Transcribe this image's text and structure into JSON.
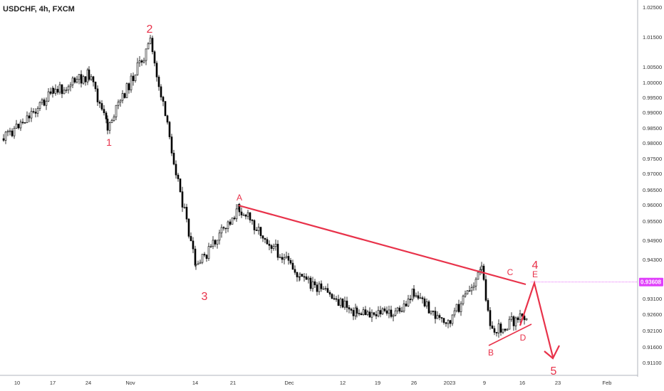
{
  "header": {
    "title": "USDCHF, 4h, FXCM"
  },
  "chart_data": {
    "type": "candlestick",
    "symbol": "USDCHF",
    "timeframe": "4h",
    "source": "FXCM",
    "ylim": [
      0.907,
      1.028
    ],
    "y_ticks": [
      "1.02500",
      "1.01500",
      "1.00500",
      "1.00000",
      "0.99500",
      "0.99000",
      "0.98500",
      "0.98000",
      "0.97500",
      "0.97000",
      "0.96500",
      "0.96000",
      "0.95500",
      "0.94900",
      "0.94300",
      "0.93100",
      "0.92600",
      "0.92100",
      "0.91600",
      "0.91100"
    ],
    "x_ticks": [
      "10",
      "17",
      "24",
      "Nov",
      "14",
      "21",
      "Dec",
      "12",
      "19",
      "26",
      "2023",
      "9",
      "16",
      "23",
      "Feb"
    ],
    "current_price": {
      "label": "0.93608",
      "value": 0.93608,
      "color": "#e040fb"
    },
    "price_path": [
      {
        "x": "10",
        "y": 0.98
      },
      {
        "x": "17",
        "y": 0.997
      },
      {
        "x": "24",
        "y": 1.003
      },
      {
        "x": "Nov",
        "y": 0.988
      },
      {
        "x": "Nov",
        "y": 1.008
      },
      {
        "x": "14",
        "y": 0.942
      },
      {
        "x": "21",
        "y": 0.957
      },
      {
        "x": "Dec",
        "y": 0.938
      },
      {
        "x": "12",
        "y": 0.926
      },
      {
        "x": "19",
        "y": 0.928
      },
      {
        "x": "26",
        "y": 0.929
      },
      {
        "x": "2023",
        "y": 0.922
      },
      {
        "x": "9",
        "y": 0.936
      },
      {
        "x": "9",
        "y": 0.92
      },
      {
        "x": "16",
        "y": 0.929
      }
    ],
    "wave_labels": [
      "1",
      "2",
      "3",
      "4",
      "5"
    ],
    "triangle_labels": [
      "A",
      "B",
      "C",
      "D",
      "E"
    ],
    "colors": {
      "bullish": "#ffffff",
      "bearish": "#000000",
      "annotation": "#e8324a"
    }
  }
}
